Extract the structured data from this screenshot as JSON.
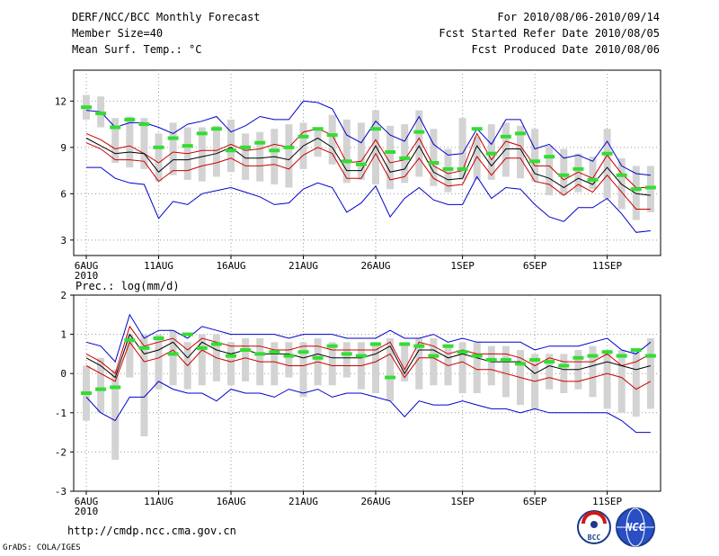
{
  "header": {
    "title": "DERF/NCC/BCC Monthly Forecast",
    "member_size": "Member Size=40",
    "variable": "Mean Surf. Temp.: °C",
    "period": "For 2010/08/06-2010/09/14",
    "started": "Fcst Started Refer Date 2010/08/05",
    "produced": "Fcst Produced Date 2010/08/06"
  },
  "footer": {
    "url": "http://cmdp.ncc.cma.gov.cn",
    "credit": "GrADS: COLA/IGES",
    "logo_bcc_text": "BCC",
    "logo_ncc_text": "NCC"
  },
  "colors": {
    "box": "#d3d3d3",
    "median": "#000000",
    "inner": "#cc0000",
    "outer": "#0000cc",
    "obs": "#33dd33",
    "grid": "#999999"
  },
  "chart_data": [
    {
      "type": "line",
      "panel": "top",
      "title": "Mean Surf. Temp.: °C",
      "xlabel": "",
      "ylabel": "",
      "ylim": [
        2,
        14
      ],
      "yticks": [
        3,
        6,
        9,
        12
      ],
      "xtick_labels": [
        "6AUG",
        "11AUG",
        "16AUG",
        "21AUG",
        "26AUG",
        "1SEP",
        "6SEP",
        "11SEP"
      ],
      "xtick_days": [
        0,
        5,
        10,
        15,
        20,
        26,
        31,
        36
      ],
      "year_label": "2010",
      "days": [
        0,
        1,
        2,
        3,
        4,
        5,
        6,
        7,
        8,
        9,
        10,
        11,
        12,
        13,
        14,
        15,
        16,
        17,
        18,
        19,
        20,
        21,
        22,
        23,
        24,
        25,
        26,
        27,
        28,
        29,
        30,
        31,
        32,
        33,
        34,
        35,
        36,
        37,
        38,
        39
      ],
      "series": [
        {
          "name": "box_max",
          "values": [
            12.4,
            12.3,
            10.9,
            11.0,
            10.9,
            9.9,
            10.6,
            10.3,
            10.3,
            10.4,
            10.8,
            9.9,
            10.0,
            10.2,
            10.5,
            10.6,
            10.3,
            11.1,
            10.8,
            10.6,
            11.4,
            10.4,
            10.5,
            11.4,
            10.2,
            8.9,
            10.9,
            9.7,
            10.5,
            10.6,
            10.4,
            10.2,
            9.1,
            8.9,
            8.6,
            8.4,
            10.2,
            8.3,
            7.8,
            7.8
          ]
        },
        {
          "name": "box_min",
          "values": [
            10.8,
            10.3,
            8.0,
            7.7,
            7.6,
            6.8,
            7.2,
            6.9,
            6.8,
            7.1,
            7.4,
            6.9,
            6.8,
            6.6,
            6.4,
            7.6,
            8.4,
            7.9,
            6.7,
            6.9,
            6.6,
            6.3,
            6.7,
            7.1,
            6.5,
            6.1,
            6.9,
            6.9,
            6.9,
            7.1,
            7.0,
            6.8,
            5.9,
            5.9,
            6.1,
            6.3,
            5.7,
            5.0,
            4.3,
            4.8
          ]
        },
        {
          "name": "outer_max",
          "values": [
            11.4,
            11.3,
            10.3,
            10.6,
            10.6,
            10.3,
            9.9,
            10.5,
            10.7,
            11.0,
            10.0,
            10.4,
            11.0,
            10.8,
            10.8,
            12.0,
            11.9,
            11.5,
            9.8,
            9.3,
            10.7,
            9.8,
            9.4,
            11.0,
            9.2,
            8.5,
            8.6,
            10.2,
            9.2,
            10.8,
            10.8,
            8.9,
            9.2,
            8.3,
            8.5,
            8.1,
            9.4,
            7.8,
            7.3,
            7.2
          ]
        },
        {
          "name": "inner_max",
          "values": [
            9.9,
            9.5,
            8.9,
            9.1,
            8.6,
            8.0,
            8.7,
            8.6,
            8.8,
            8.8,
            9.2,
            8.8,
            8.9,
            9.2,
            9.0,
            10.0,
            10.2,
            9.8,
            8.0,
            8.1,
            9.5,
            8.0,
            8.2,
            9.6,
            7.8,
            7.3,
            7.5,
            9.9,
            8.2,
            9.4,
            9.1,
            7.8,
            7.8,
            6.9,
            7.4,
            7.0,
            8.5,
            7.3,
            6.4,
            6.4
          ]
        },
        {
          "name": "median",
          "values": [
            9.6,
            9.1,
            8.6,
            8.7,
            8.6,
            7.4,
            8.2,
            8.2,
            8.4,
            8.6,
            9.0,
            8.3,
            8.3,
            8.4,
            8.2,
            9.1,
            9.6,
            9.0,
            7.5,
            7.5,
            9.1,
            7.4,
            7.6,
            9.1,
            7.4,
            6.9,
            7.0,
            9.1,
            7.8,
            8.9,
            8.9,
            7.3,
            7.0,
            6.4,
            7.0,
            6.6,
            7.7,
            6.6,
            6.0,
            5.9
          ]
        },
        {
          "name": "inner_min",
          "values": [
            9.3,
            8.9,
            8.2,
            8.2,
            8.1,
            6.8,
            7.5,
            7.5,
            7.8,
            8.0,
            8.3,
            7.8,
            7.8,
            7.9,
            7.6,
            8.5,
            9.0,
            8.6,
            7.0,
            7.0,
            8.6,
            6.9,
            7.1,
            8.3,
            7.0,
            6.5,
            6.6,
            8.4,
            7.2,
            8.3,
            8.3,
            6.8,
            6.6,
            5.9,
            6.6,
            6.1,
            7.2,
            6.1,
            5.0,
            5.0
          ]
        },
        {
          "name": "outer_min",
          "values": [
            7.7,
            7.7,
            7.0,
            6.7,
            6.6,
            4.4,
            5.5,
            5.3,
            6.0,
            6.2,
            6.4,
            6.1,
            5.8,
            5.3,
            5.4,
            6.3,
            6.7,
            6.4,
            4.8,
            5.4,
            6.5,
            4.5,
            5.7,
            6.4,
            5.6,
            5.3,
            5.3,
            7.1,
            5.7,
            6.4,
            6.3,
            5.3,
            4.5,
            4.2,
            5.1,
            5.1,
            5.7,
            4.7,
            3.5,
            3.6
          ]
        },
        {
          "name": "observed",
          "values": [
            11.6,
            11.2,
            10.3,
            10.8,
            10.5,
            9.0,
            9.6,
            9.1,
            9.9,
            10.2,
            8.8,
            9.0,
            9.3,
            8.8,
            9.0,
            9.7,
            10.2,
            9.8,
            8.1,
            7.9,
            10.2,
            8.7,
            8.3,
            10.0,
            8.0,
            7.6,
            7.6,
            10.2,
            8.6,
            9.7,
            9.9,
            8.1,
            8.4,
            7.2,
            7.6,
            6.9,
            8.6,
            7.2,
            6.3,
            6.4
          ]
        }
      ]
    },
    {
      "type": "line",
      "panel": "bottom",
      "title": "Prec.: log(mm/d)",
      "xlabel": "",
      "ylabel": "",
      "ylim": [
        -3,
        2
      ],
      "yticks": [
        -3,
        -2,
        -1,
        0,
        1,
        2
      ],
      "xtick_labels": [
        "6AUG",
        "11AUG",
        "16AUG",
        "21AUG",
        "26AUG",
        "1SEP",
        "6SEP",
        "11SEP"
      ],
      "xtick_days": [
        0,
        5,
        10,
        15,
        20,
        26,
        31,
        36
      ],
      "year_label": "2010",
      "days": [
        0,
        1,
        2,
        3,
        4,
        5,
        6,
        7,
        8,
        9,
        10,
        11,
        12,
        13,
        14,
        15,
        16,
        17,
        18,
        19,
        20,
        21,
        22,
        23,
        24,
        25,
        26,
        27,
        28,
        29,
        30,
        31,
        32,
        33,
        34,
        35,
        36,
        37,
        38,
        39
      ],
      "series": [
        {
          "name": "box_max",
          "values": [
            0.2,
            0.4,
            0.1,
            1.0,
            1.0,
            1.0,
            1.1,
            0.8,
            1.0,
            1.0,
            0.8,
            0.9,
            0.9,
            0.8,
            0.8,
            0.8,
            0.9,
            0.8,
            0.8,
            0.8,
            0.8,
            0.9,
            0.8,
            0.9,
            0.9,
            0.7,
            0.8,
            0.8,
            0.7,
            0.7,
            0.6,
            0.5,
            0.5,
            0.5,
            0.6,
            0.7,
            0.6,
            0.6,
            0.6,
            0.9
          ]
        },
        {
          "name": "box_min",
          "values": [
            -1.2,
            -1.0,
            -2.2,
            -0.1,
            -1.6,
            -0.4,
            -0.3,
            -0.4,
            -0.3,
            -0.2,
            -0.3,
            -0.2,
            -0.3,
            -0.3,
            -0.1,
            -0.6,
            -0.3,
            -0.3,
            -0.1,
            -0.4,
            -0.5,
            -0.7,
            -0.2,
            -0.4,
            -0.3,
            -0.3,
            -0.5,
            -0.5,
            -0.3,
            -0.6,
            -0.8,
            -0.9,
            -0.4,
            -0.5,
            -0.4,
            -0.6,
            -0.9,
            -1.0,
            -1.1,
            -0.9
          ]
        },
        {
          "name": "outer_max",
          "values": [
            0.8,
            0.7,
            0.3,
            1.5,
            0.9,
            1.1,
            1.1,
            0.9,
            1.2,
            1.1,
            1.0,
            1.0,
            1.0,
            1.0,
            0.9,
            1.0,
            1.0,
            1.0,
            0.9,
            0.9,
            0.9,
            1.1,
            0.9,
            0.9,
            1.0,
            0.8,
            0.9,
            0.8,
            0.8,
            0.8,
            0.8,
            0.6,
            0.7,
            0.7,
            0.7,
            0.8,
            0.9,
            0.6,
            0.5,
            0.8
          ]
        },
        {
          "name": "inner_max",
          "values": [
            0.5,
            0.3,
            0.0,
            1.2,
            0.7,
            0.8,
            0.9,
            0.6,
            0.9,
            0.8,
            0.7,
            0.7,
            0.7,
            0.6,
            0.6,
            0.7,
            0.7,
            0.6,
            0.6,
            0.6,
            0.6,
            0.8,
            0.1,
            0.8,
            0.7,
            0.5,
            0.6,
            0.5,
            0.5,
            0.5,
            0.4,
            0.2,
            0.4,
            0.3,
            0.3,
            0.3,
            0.5,
            0.2,
            0.3,
            0.5
          ]
        },
        {
          "name": "median",
          "values": [
            0.4,
            0.2,
            -0.1,
            1.0,
            0.5,
            0.6,
            0.8,
            0.4,
            0.8,
            0.6,
            0.5,
            0.6,
            0.5,
            0.5,
            0.5,
            0.4,
            0.5,
            0.4,
            0.4,
            0.4,
            0.5,
            0.7,
            0.0,
            0.6,
            0.6,
            0.4,
            0.5,
            0.4,
            0.3,
            0.3,
            0.3,
            0.0,
            0.2,
            0.1,
            0.1,
            0.2,
            0.3,
            0.2,
            0.1,
            0.2
          ]
        },
        {
          "name": "inner_min",
          "values": [
            0.2,
            0.0,
            -0.2,
            0.8,
            0.3,
            0.4,
            0.6,
            0.2,
            0.6,
            0.4,
            0.3,
            0.4,
            0.3,
            0.3,
            0.2,
            0.2,
            0.3,
            0.2,
            0.2,
            0.2,
            0.3,
            0.5,
            -0.1,
            0.4,
            0.4,
            0.2,
            0.3,
            0.1,
            0.1,
            0.0,
            -0.1,
            -0.2,
            -0.1,
            -0.2,
            -0.2,
            -0.1,
            0.0,
            -0.1,
            -0.4,
            -0.2
          ]
        },
        {
          "name": "outer_min",
          "values": [
            -0.6,
            -1.0,
            -1.2,
            -0.6,
            -0.6,
            -0.2,
            -0.4,
            -0.5,
            -0.5,
            -0.7,
            -0.4,
            -0.5,
            -0.5,
            -0.6,
            -0.4,
            -0.5,
            -0.4,
            -0.6,
            -0.5,
            -0.5,
            -0.6,
            -0.7,
            -1.1,
            -0.7,
            -0.8,
            -0.8,
            -0.7,
            -0.8,
            -0.9,
            -0.9,
            -1.0,
            -0.9,
            -1.0,
            -1.0,
            -1.0,
            -1.0,
            -1.0,
            -1.2,
            -1.5,
            -1.5
          ]
        },
        {
          "name": "observed",
          "values": [
            -0.5,
            -0.4,
            -0.35,
            0.85,
            0.65,
            0.9,
            0.5,
            1.0,
            0.65,
            0.75,
            0.45,
            0.6,
            0.5,
            0.55,
            0.45,
            0.55,
            0.4,
            0.7,
            0.5,
            0.45,
            0.75,
            -0.1,
            0.75,
            0.7,
            0.45,
            0.7,
            0.55,
            0.45,
            0.35,
            0.35,
            0.25,
            0.35,
            0.3,
            0.2,
            0.4,
            0.45,
            0.55,
            0.45,
            0.6,
            0.45
          ]
        }
      ]
    }
  ]
}
